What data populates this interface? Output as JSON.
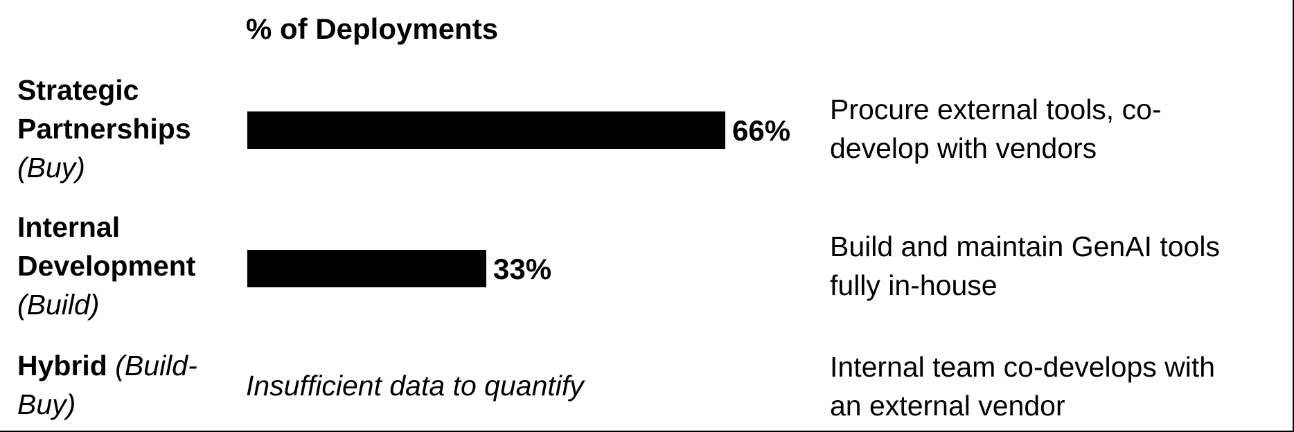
{
  "chart_data": {
    "type": "bar",
    "orientation": "horizontal",
    "title": "% of Deployments",
    "categories": [
      "Strategic Partnerships (Buy)",
      "Internal Development (Build)",
      "Hybrid (Build-Buy)"
    ],
    "values": [
      66,
      33,
      null
    ],
    "value_labels": [
      "66%",
      "33%",
      ""
    ],
    "bar_color": "#000000",
    "xlim": [
      0,
      100
    ],
    "grid": false,
    "legend": "none"
  },
  "rows": [
    {
      "label_bold_1": "Strategic",
      "label_bold_2": "Partnerships",
      "label_italic": "(Buy)",
      "note_1": "Procure external tools, co-",
      "note_2": "develop with vendors"
    },
    {
      "label_bold_1": "Internal",
      "label_bold_2": "Development",
      "label_italic": "(Build)",
      "note_1": "Build and maintain GenAI tools",
      "note_2": "fully in-house"
    },
    {
      "label_bold": "Hybrid",
      "label_italic_1": "(Build-",
      "label_italic_2": "Buy)",
      "value_text": "Insufficient data to quantify",
      "note_1": "Internal team co-develops with",
      "note_2": "an external vendor"
    }
  ]
}
